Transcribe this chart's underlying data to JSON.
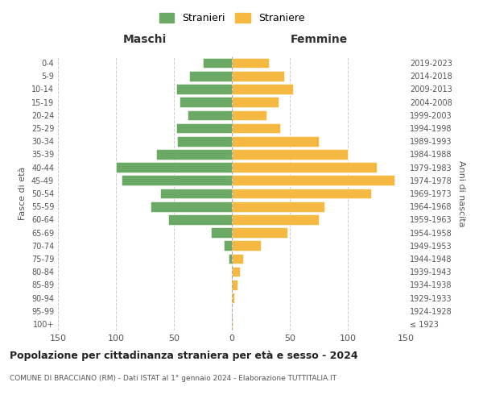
{
  "age_groups": [
    "100+",
    "95-99",
    "90-94",
    "85-89",
    "80-84",
    "75-79",
    "70-74",
    "65-69",
    "60-64",
    "55-59",
    "50-54",
    "45-49",
    "40-44",
    "35-39",
    "30-34",
    "25-29",
    "20-24",
    "15-19",
    "10-14",
    "5-9",
    "0-4"
  ],
  "birth_years": [
    "≤ 1923",
    "1924-1928",
    "1929-1933",
    "1934-1938",
    "1939-1943",
    "1944-1948",
    "1949-1953",
    "1954-1958",
    "1959-1963",
    "1964-1968",
    "1969-1973",
    "1974-1978",
    "1979-1983",
    "1984-1988",
    "1989-1993",
    "1994-1998",
    "1999-2003",
    "2004-2008",
    "2009-2013",
    "2014-2018",
    "2019-2023"
  ],
  "maschi": [
    0,
    0,
    0,
    0,
    0,
    3,
    7,
    18,
    55,
    70,
    62,
    95,
    100,
    65,
    47,
    48,
    38,
    45,
    48,
    37,
    25
  ],
  "femmine": [
    1,
    0,
    2,
    5,
    7,
    10,
    25,
    48,
    75,
    80,
    120,
    140,
    125,
    100,
    75,
    42,
    30,
    40,
    53,
    45,
    32
  ],
  "color_maschi": "#6aaa64",
  "color_femmine": "#f5b942",
  "title": "Popolazione per cittadinanza straniera per età e sesso - 2024",
  "subtitle": "COMUNE DI BRACCIANO (RM) - Dati ISTAT al 1° gennaio 2024 - Elaborazione TUTTITALIA.IT",
  "xlabel_left": "Maschi",
  "xlabel_right": "Femmine",
  "ylabel_left": "Fasce di età",
  "ylabel_right": "Anni di nascita",
  "legend_maschi": "Stranieri",
  "legend_femmine": "Straniere",
  "xlim": 150,
  "background_color": "#ffffff"
}
